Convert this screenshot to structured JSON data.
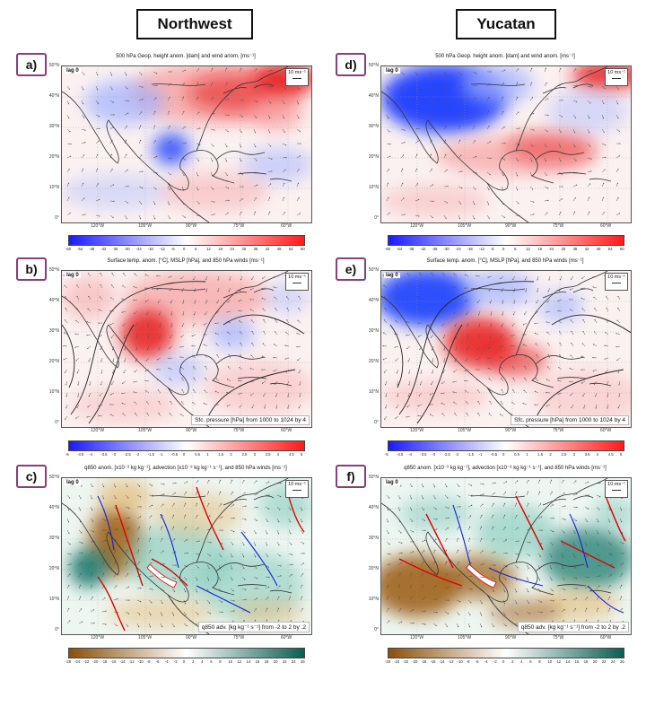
{
  "columns": [
    "Northwest",
    "Yucatan"
  ],
  "panels": [
    {
      "label": "a)",
      "title": "500 hPa Geop. height anom. [dam] and wind anom. [ms⁻¹]",
      "lag": "lag 0",
      "ref": "10 ms⁻¹",
      "note": "",
      "kind": "z500",
      "pattern": "northwest"
    },
    {
      "label": "d)",
      "title": "500 hPa Geop. height anom. [dam] and wind anom. [ms⁻¹]",
      "lag": "lag 0",
      "ref": "10 ms⁻¹",
      "note": "",
      "kind": "z500",
      "pattern": "yucatan"
    },
    {
      "label": "b)",
      "title": "Surface temp. anom. [°C], MSLP [hPa], and 850 hPa winds [ms⁻¹]",
      "lag": "lag 0",
      "ref": "10 ms⁻¹",
      "note": "Sfc. pressure [hPa] from 1000 to 1024 by 4",
      "kind": "tsfc",
      "pattern": "northwest"
    },
    {
      "label": "e)",
      "title": "Surface temp. anom. [°C], MSLP [hPa], and 850 hPa winds [ms⁻¹]",
      "lag": "lag 0",
      "ref": "10 ms⁻¹",
      "note": "Sfc. pressure [hPa] from 1000 to 1024 by 4",
      "kind": "tsfc",
      "pattern": "yucatan"
    },
    {
      "label": "c)",
      "title": "q850 anom. [x10⁻³ kg kg⁻¹], advection [x10⁻⁸ kg kg⁻¹ s⁻¹], and 850 hPa winds [ms⁻¹]",
      "lag": "lag 0",
      "ref": "10 ms⁻¹",
      "note": "q850 adv. [kg kg⁻¹ s⁻¹] from -2 to 2 by .2",
      "kind": "q850",
      "pattern": "northwest"
    },
    {
      "label": "f)",
      "title": "q850 anom. [x10⁻³ kg kg⁻¹], advection [x10⁻⁸ kg kg⁻¹ s⁻¹], and 850 hPa winds [ms⁻¹]",
      "lag": "lag 0",
      "ref": "10 ms⁻¹",
      "note": "q850 adv. [kg kg⁻¹ s⁻¹] from -2 to 2 by .2",
      "kind": "q850",
      "pattern": "yucatan"
    }
  ],
  "lat_labels": [
    "50°N",
    "40°N",
    "30°N",
    "20°N",
    "10°N",
    "0°"
  ],
  "lon_labels": [
    "120°W",
    "105°W",
    "90°W",
    "75°W",
    "60°W"
  ],
  "colorbars": {
    "z500": [
      "-60",
      "-54",
      "-48",
      "-42",
      "-36",
      "-30",
      "-24",
      "-18",
      "-12",
      "-6",
      "0",
      "6",
      "12",
      "18",
      "24",
      "30",
      "36",
      "42",
      "48",
      "54",
      "60"
    ],
    "tsfc": [
      "-5",
      "-4.5",
      "-4",
      "-3.5",
      "-3",
      "-2.5",
      "-2",
      "-1.5",
      "-1",
      "-0.5",
      "0",
      "0.5",
      "1",
      "1.5",
      "2",
      "2.5",
      "3",
      "3.5",
      "4",
      "4.5",
      "5"
    ],
    "q850": [
      "-26",
      "-24",
      "-22",
      "-20",
      "-18",
      "-16",
      "-14",
      "-12",
      "-10",
      "-8",
      "-6",
      "-4",
      "-2",
      "0",
      "2",
      "4",
      "6",
      "8",
      "10",
      "12",
      "14",
      "16",
      "18",
      "20",
      "22",
      "24",
      "26"
    ]
  },
  "palette": {
    "z500": [
      "#1a1aff",
      "#ffffff",
      "#ff1a1a"
    ],
    "tsfc": [
      "#1a1aff",
      "#ffffff",
      "#ff1a1a"
    ],
    "q850": [
      "#8a4f0a",
      "#ffffff",
      "#0d5d52"
    ]
  }
}
